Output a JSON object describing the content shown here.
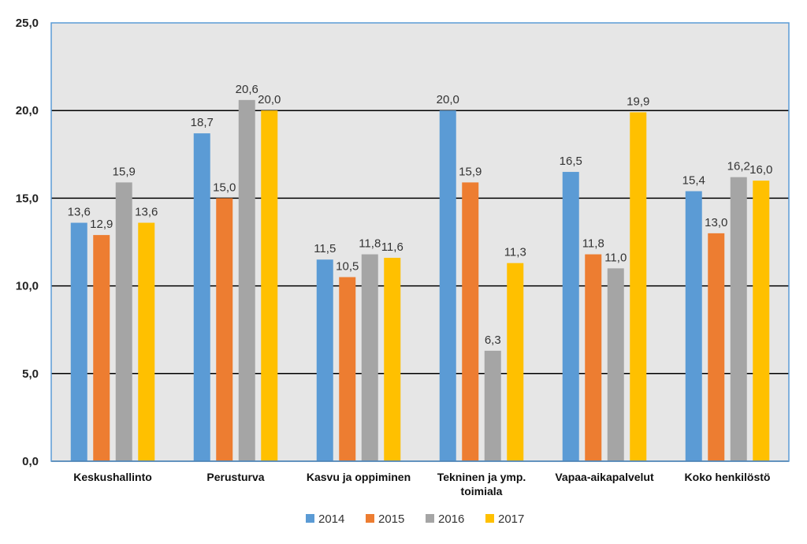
{
  "chart_data": {
    "type": "bar",
    "categories": [
      "Keskushallinto",
      "Perusturva",
      "Kasvu ja oppiminen",
      "Tekninen ja ymp. toimiala",
      "Vapaa-aikapalvelut",
      "Koko henkilöstö"
    ],
    "category_lines": [
      [
        "Keskushallinto"
      ],
      [
        "Perusturva"
      ],
      [
        "Kasvu ja oppiminen"
      ],
      [
        "Tekninen ja ymp.",
        "toimiala"
      ],
      [
        "Vapaa-aikapalvelut"
      ],
      [
        "Koko henkilöstö"
      ]
    ],
    "series": [
      {
        "name": "2014",
        "color": "#5B9BD5",
        "values": [
          13.6,
          18.7,
          11.5,
          20.0,
          16.5,
          15.4
        ],
        "labels": [
          "13,6",
          "18,7",
          "11,5",
          "20,0",
          "16,5",
          "15,4"
        ]
      },
      {
        "name": "2015",
        "color": "#ED7D31",
        "values": [
          12.9,
          15.0,
          10.5,
          15.9,
          11.8,
          13.0
        ],
        "labels": [
          "12,9",
          "15,0",
          "10,5",
          "15,9",
          "11,8",
          "13,0"
        ]
      },
      {
        "name": "2016",
        "color": "#A5A5A5",
        "values": [
          15.9,
          20.6,
          11.8,
          6.3,
          11.0,
          16.2
        ],
        "labels": [
          "15,9",
          "20,6",
          "11,8",
          "6,3",
          "11,0",
          "16,2"
        ]
      },
      {
        "name": "2017",
        "color": "#FFC000",
        "values": [
          13.6,
          20.0,
          11.6,
          11.3,
          19.9,
          16.0
        ],
        "labels": [
          "13,6",
          "20,0",
          "11,6",
          "11,3",
          "19,9",
          "16,0"
        ]
      }
    ],
    "y_ticks": [
      0,
      5,
      10,
      15,
      20,
      25
    ],
    "y_tick_labels": [
      "0,0",
      "5,0",
      "10,0",
      "15,0",
      "20,0",
      "25,0"
    ],
    "ylim": [
      0,
      25
    ],
    "grid": true,
    "legend_position": "bottom",
    "plot_background": "#E6E6E6",
    "frame_color": "#5B9BD5"
  }
}
